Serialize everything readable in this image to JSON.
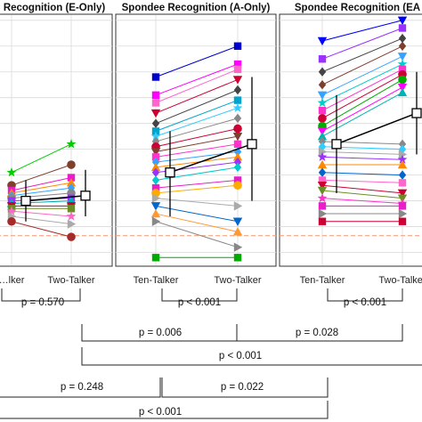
{
  "chart_data": {
    "type": "line",
    "panels": [
      {
        "title": "Recognition (E-Only)",
        "x_labels": [
          "…lker",
          "Two-Talker"
        ],
        "mean": [
          0.3,
          0.32
        ],
        "err_low": [
          0.22,
          0.24
        ],
        "err_high": [
          0.38,
          0.42
        ],
        "subjects": [
          {
            "v": [
              0.41,
              0.52
            ],
            "color": "#00cc00",
            "marker": "star"
          },
          {
            "v": [
              0.36,
              0.44
            ],
            "color": "#7f3f2f",
            "marker": "circle"
          },
          {
            "v": [
              0.34,
              0.39
            ],
            "color": "#e81ec9",
            "marker": "square"
          },
          {
            "v": [
              0.33,
              0.37
            ],
            "color": "#ff8800",
            "marker": "triangle-up"
          },
          {
            "v": [
              0.32,
              0.35
            ],
            "color": "#33a3ff",
            "marker": "diamond"
          },
          {
            "v": [
              0.31,
              0.33
            ],
            "color": "#888888",
            "marker": "circle"
          },
          {
            "v": [
              0.3,
              0.31
            ],
            "color": "#9b30ff",
            "marker": "square"
          },
          {
            "v": [
              0.29,
              0.3
            ],
            "color": "#00b3b3",
            "marker": "triangle-up"
          },
          {
            "v": [
              0.28,
              0.28
            ],
            "color": "#cc0033",
            "marker": "triangle-down"
          },
          {
            "v": [
              0.27,
              0.27
            ],
            "color": "#6b8e23",
            "marker": "square"
          },
          {
            "v": [
              0.26,
              0.24
            ],
            "color": "#ff66cc",
            "marker": "star"
          },
          {
            "v": [
              0.24,
              0.21
            ],
            "color": "#aaaaaa",
            "marker": "triangle-right"
          },
          {
            "v": [
              0.22,
              0.16
            ],
            "color": "#a52a2a",
            "marker": "circle"
          }
        ]
      },
      {
        "title": "Spondee Recognition (A-Only)",
        "x_labels": [
          "Ten-Talker",
          "Two-Talker"
        ],
        "mean": [
          0.41,
          0.52
        ],
        "err_low": [
          0.24,
          0.3
        ],
        "err_high": [
          0.57,
          0.78
        ],
        "subjects": [
          {
            "v": [
              0.78,
              0.9
            ],
            "color": "#0000cc",
            "marker": "square"
          },
          {
            "v": [
              0.71,
              0.83
            ],
            "color": "#ff00ff",
            "marker": "square"
          },
          {
            "v": [
              0.68,
              0.81
            ],
            "color": "#ff66cc",
            "marker": "square"
          },
          {
            "v": [
              0.64,
              0.77
            ],
            "color": "#cc0033",
            "marker": "triangle-down"
          },
          {
            "v": [
              0.6,
              0.73
            ],
            "color": "#444444",
            "marker": "diamond"
          },
          {
            "v": [
              0.57,
              0.69
            ],
            "color": "#00a3cc",
            "marker": "square"
          },
          {
            "v": [
              0.55,
              0.66
            ],
            "color": "#33ccff",
            "marker": "star"
          },
          {
            "v": [
              0.53,
              0.62
            ],
            "color": "#888888",
            "marker": "diamond"
          },
          {
            "v": [
              0.51,
              0.58
            ],
            "color": "#cc0033",
            "marker": "circle"
          },
          {
            "v": [
              0.49,
              0.55
            ],
            "color": "#7f3f2f",
            "marker": "triangle-down"
          },
          {
            "v": [
              0.47,
              0.52
            ],
            "color": "#ff33cc",
            "marker": "square"
          },
          {
            "v": [
              0.45,
              0.49
            ],
            "color": "#33a3ff",
            "marker": "diamond"
          },
          {
            "v": [
              0.43,
              0.47
            ],
            "color": "#ff8800",
            "marker": "triangle-up"
          },
          {
            "v": [
              0.41,
              0.45
            ],
            "color": "#9b30ff",
            "marker": "diamond"
          },
          {
            "v": [
              0.38,
              0.43
            ],
            "color": "#00cccc",
            "marker": "diamond"
          },
          {
            "v": [
              0.35,
              0.38
            ],
            "color": "#e81ec9",
            "marker": "square"
          },
          {
            "v": [
              0.33,
              0.36
            ],
            "color": "#ffaa00",
            "marker": "circle"
          },
          {
            "v": [
              0.31,
              0.28
            ],
            "color": "#aaaaaa",
            "marker": "triangle-right"
          },
          {
            "v": [
              0.28,
              0.22
            ],
            "color": "#0066cc",
            "marker": "triangle-down"
          },
          {
            "v": [
              0.25,
              0.18
            ],
            "color": "#ff9933",
            "marker": "triangle-up"
          },
          {
            "v": [
              0.22,
              0.12
            ],
            "color": "#888888",
            "marker": "triangle-right"
          },
          {
            "v": [
              0.08,
              0.08
            ],
            "color": "#00aa00",
            "marker": "square"
          }
        ]
      },
      {
        "title": "Spondee Recognition (EA",
        "x_labels": [
          "Ten-Talker",
          "Two-Talker"
        ],
        "mean": [
          0.52,
          0.64
        ],
        "err_low": [
          0.33,
          0.48
        ],
        "err_high": [
          0.71,
          0.8
        ],
        "subjects": [
          {
            "v": [
              0.92,
              1.0
            ],
            "color": "#0000ff",
            "marker": "triangle-down"
          },
          {
            "v": [
              0.85,
              0.97
            ],
            "color": "#9b30ff",
            "marker": "square"
          },
          {
            "v": [
              0.8,
              0.93
            ],
            "color": "#444444",
            "marker": "diamond"
          },
          {
            "v": [
              0.75,
              0.9
            ],
            "color": "#7f3f2f",
            "marker": "diamond"
          },
          {
            "v": [
              0.71,
              0.86
            ],
            "color": "#33a3ff",
            "marker": "triangle-down"
          },
          {
            "v": [
              0.68,
              0.83
            ],
            "color": "#00cccc",
            "marker": "star"
          },
          {
            "v": [
              0.65,
              0.81
            ],
            "color": "#ff33cc",
            "marker": "square"
          },
          {
            "v": [
              0.62,
              0.79
            ],
            "color": "#cc0033",
            "marker": "circle"
          },
          {
            "v": [
              0.59,
              0.77
            ],
            "color": "#00aa00",
            "marker": "circle"
          },
          {
            "v": [
              0.57,
              0.74
            ],
            "color": "#ff00ff",
            "marker": "triangle-down"
          },
          {
            "v": [
              0.55,
              0.72
            ],
            "color": "#00b3b3",
            "marker": "triangle-up"
          },
          {
            "v": [
              0.53,
              0.52
            ],
            "color": "#888888",
            "marker": "diamond"
          },
          {
            "v": [
              0.51,
              0.5
            ],
            "color": "#33ccff",
            "marker": "diamond"
          },
          {
            "v": [
              0.49,
              0.48
            ],
            "color": "#aaaaaa",
            "marker": "triangle-right"
          },
          {
            "v": [
              0.47,
              0.46
            ],
            "color": "#9b30ff",
            "marker": "star"
          },
          {
            "v": [
              0.44,
              0.44
            ],
            "color": "#ff8800",
            "marker": "triangle-up"
          },
          {
            "v": [
              0.41,
              0.4
            ],
            "color": "#0066cc",
            "marker": "diamond"
          },
          {
            "v": [
              0.38,
              0.37
            ],
            "color": "#ff66cc",
            "marker": "square"
          },
          {
            "v": [
              0.36,
              0.33
            ],
            "color": "#cc0033",
            "marker": "triangle-down"
          },
          {
            "v": [
              0.34,
              0.31
            ],
            "color": "#6b8e23",
            "marker": "triangle-down"
          },
          {
            "v": [
              0.31,
              0.29
            ],
            "color": "#ff33cc",
            "marker": "star"
          },
          {
            "v": [
              0.28,
              0.28
            ],
            "color": "#e81ec9",
            "marker": "square"
          },
          {
            "v": [
              0.25,
              0.25
            ],
            "color": "#888888",
            "marker": "triangle-right"
          },
          {
            "v": [
              0.22,
              0.22
            ],
            "color": "#cc0033",
            "marker": "square"
          }
        ]
      }
    ],
    "reference_line": {
      "value": 0.165,
      "style": "dashed",
      "color": "#f4a582"
    },
    "ylim": [
      0.05,
      1.02
    ],
    "grid": true,
    "comparisons": [
      {
        "label": "p = 0.570"
      },
      {
        "label": "p < 0.001"
      },
      {
        "label": "p < 0.001"
      },
      {
        "label": "p = 0.006"
      },
      {
        "label": "p = 0.028"
      },
      {
        "label": "p < 0.001"
      },
      {
        "label": "p = 0.248"
      },
      {
        "label": "p = 0.022"
      },
      {
        "label": "p < 0.001"
      }
    ]
  }
}
